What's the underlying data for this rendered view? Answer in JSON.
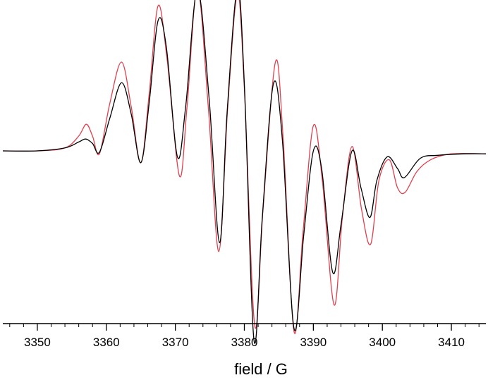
{
  "chart_data": {
    "type": "line",
    "title": "",
    "xlabel": "field / G",
    "ylabel": "",
    "xlim": [
      3345,
      3415
    ],
    "ylim": [
      -1.0,
      1.0
    ],
    "x_major_ticks": [
      3350,
      3360,
      3370,
      3380,
      3390,
      3400,
      3410
    ],
    "x_minor_step": 2,
    "grid": false,
    "legend": "none",
    "series": [
      {
        "color": "#000000",
        "points": [
          [
            3345,
            0.0
          ],
          [
            3350,
            0.0
          ],
          [
            3354,
            0.02
          ],
          [
            3356,
            0.06
          ],
          [
            3357,
            0.08
          ],
          [
            3358,
            0.05
          ],
          [
            3359,
            -0.01
          ],
          [
            3360.5,
            0.22
          ],
          [
            3362.2,
            0.46
          ],
          [
            3363.6,
            0.25
          ],
          [
            3365,
            -0.08
          ],
          [
            3366.2,
            0.32
          ],
          [
            3367.5,
            0.88
          ],
          [
            3368.7,
            0.7
          ],
          [
            3370.3,
            -0.04
          ],
          [
            3371.5,
            0.3
          ],
          [
            3373.2,
            1.09
          ],
          [
            3374.9,
            0.35
          ],
          [
            3376.4,
            -0.62
          ],
          [
            3377.5,
            0.26
          ],
          [
            3379.0,
            1.1
          ],
          [
            3380.0,
            0.45
          ],
          [
            3381.4,
            -1.28
          ],
          [
            3382.6,
            -0.45
          ],
          [
            3384.2,
            0.45
          ],
          [
            3385.5,
            0.08
          ],
          [
            3387.2,
            -1.2
          ],
          [
            3388.6,
            -0.57
          ],
          [
            3390.0,
            0.0
          ],
          [
            3391.2,
            -0.12
          ],
          [
            3392.8,
            -0.82
          ],
          [
            3394.0,
            -0.5
          ],
          [
            3395.6,
            0.0
          ],
          [
            3396.9,
            -0.25
          ],
          [
            3398.2,
            -0.45
          ],
          [
            3399.2,
            -0.2
          ],
          [
            3400.7,
            -0.04
          ],
          [
            3402.2,
            -0.12
          ],
          [
            3403.2,
            -0.18
          ],
          [
            3405.5,
            -0.05
          ],
          [
            3408,
            -0.03
          ],
          [
            3412,
            -0.02
          ],
          [
            3415,
            -0.02
          ]
        ]
      },
      {
        "color": "#e0404e",
        "points": [
          [
            3345,
            0.0
          ],
          [
            3350,
            0.0
          ],
          [
            3354,
            0.02
          ],
          [
            3356,
            0.1
          ],
          [
            3357.1,
            0.18
          ],
          [
            3358,
            0.1
          ],
          [
            3359,
            -0.02
          ],
          [
            3360.5,
            0.32
          ],
          [
            3362.2,
            0.6
          ],
          [
            3363.6,
            0.3
          ],
          [
            3365,
            -0.08
          ],
          [
            3366.2,
            0.38
          ],
          [
            3367.5,
            0.98
          ],
          [
            3368.8,
            0.62
          ],
          [
            3370.6,
            -0.17
          ],
          [
            3371.7,
            0.3
          ],
          [
            3373.2,
            1.1
          ],
          [
            3374.8,
            0.28
          ],
          [
            3376.3,
            -0.68
          ],
          [
            3377.6,
            0.3
          ],
          [
            3379.0,
            1.06
          ],
          [
            3380.0,
            0.42
          ],
          [
            3381.5,
            -1.18
          ],
          [
            3382.7,
            -0.4
          ],
          [
            3384.5,
            0.6
          ],
          [
            3385.6,
            0.1
          ],
          [
            3387.2,
            -1.22
          ],
          [
            3388.5,
            -0.55
          ],
          [
            3390.0,
            0.17
          ],
          [
            3391.3,
            -0.2
          ],
          [
            3393.0,
            -1.04
          ],
          [
            3394.2,
            -0.45
          ],
          [
            3395.6,
            0.03
          ],
          [
            3397.0,
            -0.4
          ],
          [
            3398.3,
            -0.63
          ],
          [
            3399.5,
            -0.2
          ],
          [
            3401.0,
            -0.06
          ],
          [
            3402.2,
            -0.25
          ],
          [
            3403.3,
            -0.28
          ],
          [
            3405,
            -0.14
          ],
          [
            3407,
            -0.06
          ],
          [
            3410,
            -0.02
          ],
          [
            3415,
            -0.02
          ]
        ]
      }
    ]
  }
}
